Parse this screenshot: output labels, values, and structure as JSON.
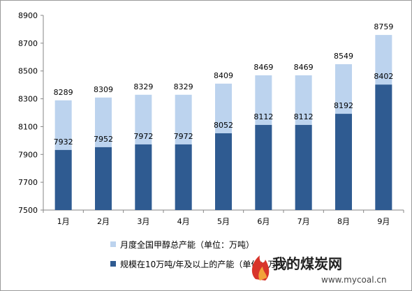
{
  "chart_data": {
    "type": "bar",
    "categories": [
      "1月",
      "2月",
      "3月",
      "4月",
      "5月",
      "6月",
      "7月",
      "8月",
      "9月"
    ],
    "series": [
      {
        "name": "月度全国甲醇总产能（单位：万吨）",
        "values": [
          8289,
          8309,
          8329,
          8329,
          8409,
          8469,
          8469,
          8549,
          8759
        ],
        "color": "#bcd3ee"
      },
      {
        "name": "规模在10万吨/年及以上的产能（单位：万吨）",
        "values": [
          7932,
          7952,
          7972,
          7972,
          8052,
          8112,
          8112,
          8192,
          8402
        ],
        "color": "#2f5b91"
      }
    ],
    "yticks": [
      7500,
      7700,
      7900,
      8100,
      8300,
      8500,
      8700,
      8900
    ],
    "ylim": [
      7500,
      8900
    ],
    "grid": false,
    "legend_position": "bottom-left",
    "title": "",
    "xlabel": "",
    "ylabel": ""
  },
  "watermark": {
    "brand": "我的煤炭网",
    "url": "www.mycoal.cn"
  }
}
